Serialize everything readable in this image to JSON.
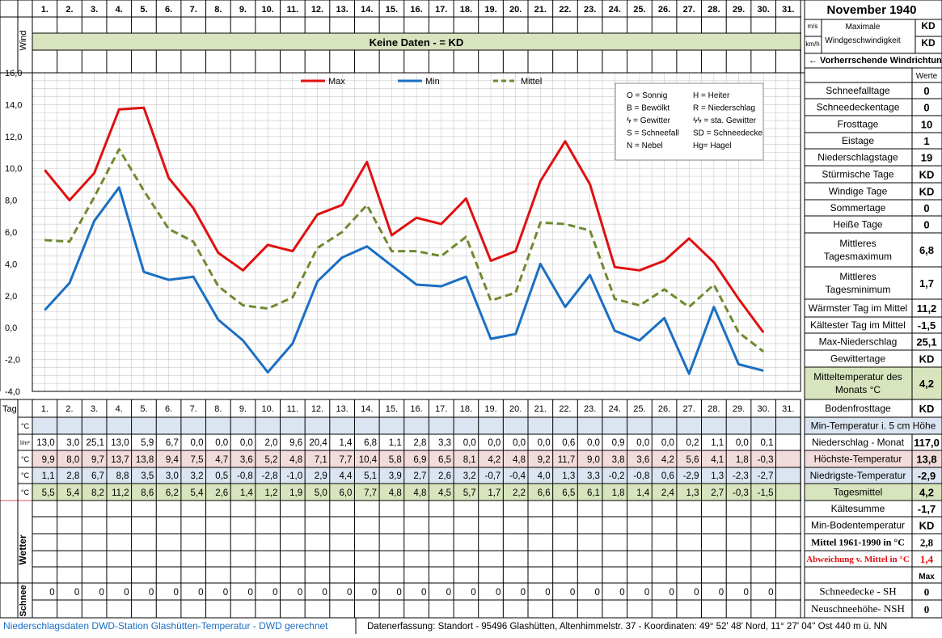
{
  "header": {
    "title": "November 1940",
    "wind_label": "Wind",
    "unit_ms": "m/s",
    "unit_kmh": "km/h",
    "max_wind_label_1": "Maximale",
    "max_wind_label_2": "Windgeschwindigkeit",
    "max_wind_value_1": "KD",
    "max_wind_value_2": "KD",
    "no_data_text": "Keine Daten -  = KD",
    "prevailing_wind": "←  Vorherrschende Windrichtung"
  },
  "days": [
    "1.",
    "2.",
    "3.",
    "4.",
    "5.",
    "6.",
    "7.",
    "8.",
    "9.",
    "10.",
    "11.",
    "12.",
    "13.",
    "14.",
    "15.",
    "16.",
    "17.",
    "18.",
    "19.",
    "20.",
    "21.",
    "22.",
    "23.",
    "24.",
    "25.",
    "26.",
    "27.",
    "28.",
    "29.",
    "30.",
    "31."
  ],
  "row_labels": {
    "tag": "Tag",
    "blue_unit": "°C",
    "precip_unit": "l/m²",
    "max_unit": "°C",
    "min_unit": "°C",
    "mean_unit": "°C",
    "wetter": "Wetter",
    "schnee": "Schnee"
  },
  "legend": {
    "max": "Max",
    "min": "Min",
    "mittel": "Mittel"
  },
  "weather_key": [
    [
      "O = Sonnig",
      "H = Heiter"
    ],
    [
      "B = Bewölkt",
      "R = Niederschlag"
    ],
    [
      "ϟ = Gewitter",
      "ϟϟ = sta. Gewitter"
    ],
    [
      "S = Schneefall",
      "SD = Schneedecke"
    ],
    [
      "N = Nebel",
      "Hg= Hagel"
    ]
  ],
  "chart_data": {
    "type": "line",
    "x": [
      1,
      2,
      3,
      4,
      5,
      6,
      7,
      8,
      9,
      10,
      11,
      12,
      13,
      14,
      15,
      16,
      17,
      18,
      19,
      20,
      21,
      22,
      23,
      24,
      25,
      26,
      27,
      28,
      29,
      30
    ],
    "ylim": [
      -4,
      16
    ],
    "yticks": [
      "16,0",
      "14,0",
      "12,0",
      "10,0",
      "8,0",
      "6,0",
      "4,0",
      "2,0",
      "0,0",
      "-2,0",
      "-4,0"
    ],
    "grid": true,
    "legend_position": "top",
    "series": [
      {
        "name": "Max",
        "color": "#e01010",
        "dash": false,
        "values": [
          9.9,
          8.0,
          9.7,
          13.7,
          13.8,
          9.4,
          7.5,
          4.7,
          3.6,
          5.2,
          4.8,
          7.1,
          7.7,
          10.4,
          5.8,
          6.9,
          6.5,
          8.1,
          4.2,
          4.8,
          9.2,
          11.7,
          9.0,
          3.8,
          3.6,
          4.2,
          5.6,
          4.1,
          1.8,
          -0.3
        ]
      },
      {
        "name": "Min",
        "color": "#1a6fc4",
        "dash": false,
        "values": [
          1.1,
          2.8,
          6.7,
          8.8,
          3.5,
          3.0,
          3.2,
          0.5,
          -0.8,
          -2.8,
          -1.0,
          2.9,
          4.4,
          5.1,
          3.9,
          2.7,
          2.6,
          3.2,
          -0.7,
          -0.4,
          4.0,
          1.3,
          3.3,
          -0.2,
          -0.8,
          0.6,
          -2.9,
          1.3,
          -2.3,
          -2.7
        ]
      },
      {
        "name": "Mittel",
        "color": "#6f8a30",
        "dash": true,
        "values": [
          5.5,
          5.4,
          8.2,
          11.2,
          8.6,
          6.2,
          5.4,
          2.6,
          1.4,
          1.2,
          1.9,
          5.0,
          6.0,
          7.7,
          4.8,
          4.8,
          4.5,
          5.7,
          1.7,
          2.2,
          6.6,
          6.5,
          6.1,
          1.8,
          1.4,
          2.4,
          1.3,
          2.7,
          -0.3,
          -1.5
        ]
      }
    ]
  },
  "table": {
    "precip": [
      "13,0",
      "3,0",
      "25,1",
      "13,0",
      "5,9",
      "6,7",
      "0,0",
      "0,0",
      "0,0",
      "2,0",
      "9,6",
      "20,4",
      "1,4",
      "6,8",
      "1,1",
      "2,8",
      "3,3",
      "0,0",
      "0,0",
      "0,0",
      "0,0",
      "0,6",
      "0,0",
      "0,9",
      "0,0",
      "0,0",
      "0,2",
      "1,1",
      "0,0",
      "0,1",
      ""
    ],
    "max": [
      "9,9",
      "8,0",
      "9,7",
      "13,7",
      "13,8",
      "9,4",
      "7,5",
      "4,7",
      "3,6",
      "5,2",
      "4,8",
      "7,1",
      "7,7",
      "10,4",
      "5,8",
      "6,9",
      "6,5",
      "8,1",
      "4,2",
      "4,8",
      "9,2",
      "11,7",
      "9,0",
      "3,8",
      "3,6",
      "4,2",
      "5,6",
      "4,1",
      "1,8",
      "-0,3",
      ""
    ],
    "min": [
      "1,1",
      "2,8",
      "6,7",
      "8,8",
      "3,5",
      "3,0",
      "3,2",
      "0,5",
      "-0,8",
      "-2,8",
      "-1,0",
      "2,9",
      "4,4",
      "5,1",
      "3,9",
      "2,7",
      "2,6",
      "3,2",
      "-0,7",
      "-0,4",
      "4,0",
      "1,3",
      "3,3",
      "-0,2",
      "-0,8",
      "0,6",
      "-2,9",
      "1,3",
      "-2,3",
      "-2,7",
      ""
    ],
    "mean": [
      "5,5",
      "5,4",
      "8,2",
      "11,2",
      "8,6",
      "6,2",
      "5,4",
      "2,6",
      "1,4",
      "1,2",
      "1,9",
      "5,0",
      "6,0",
      "7,7",
      "4,8",
      "4,8",
      "4,5",
      "5,7",
      "1,7",
      "2,2",
      "6,6",
      "6,5",
      "6,1",
      "1,8",
      "1,4",
      "2,4",
      "1,3",
      "2,7",
      "-0,3",
      "-1,5",
      ""
    ],
    "snow": [
      "0",
      "0",
      "0",
      "0",
      "0",
      "0",
      "0",
      "0",
      "0",
      "0",
      "0",
      "0",
      "0",
      "0",
      "0",
      "0",
      "0",
      "0",
      "0",
      "0",
      "0",
      "0",
      "0",
      "0",
      "0",
      "0",
      "0",
      "0",
      "0",
      "0",
      ""
    ]
  },
  "side": {
    "werte_header": "Werte",
    "stats": [
      {
        "label": "Schneefalltage",
        "value": "0"
      },
      {
        "label": "Schneedeckentage",
        "value": "0"
      },
      {
        "label": "Frosttage",
        "value": "10"
      },
      {
        "label": "Eistage",
        "value": "1"
      },
      {
        "label": "Niederschlagstage",
        "value": "19"
      },
      {
        "label": "Stürmische Tage",
        "value": "KD"
      },
      {
        "label": "Windige Tage",
        "value": "KD"
      },
      {
        "label": "Sommertage",
        "value": "0"
      },
      {
        "label": "Heiße Tage",
        "value": "0"
      },
      {
        "label": "Mittleres Tagesmaximum",
        "value": "6,8"
      },
      {
        "label": "Mittleres Tagesminimum",
        "value": "1,7"
      },
      {
        "label": "Wärmster Tag im Mittel",
        "value": "11,2"
      },
      {
        "label": "Kältester Tag im Mittel",
        "value": "-1,5"
      },
      {
        "label": "Max-Niederschlag",
        "value": "25,1"
      },
      {
        "label": "Gewittertage",
        "value": "KD"
      },
      {
        "label": "Mitteltemperatur des Monats °C",
        "value": "4,2"
      },
      {
        "label": "Bodenfrosttage",
        "value": "KD"
      }
    ],
    "bottom": [
      {
        "label": "Min-Temperatur i. 5 cm Höhe",
        "value": ""
      },
      {
        "label": "Niederschlag - Monat",
        "value": "117,0"
      },
      {
        "label": "Höchste-Temperatur",
        "value": "13,8"
      },
      {
        "label": "Niedrigste-Temperatur",
        "value": "-2,9"
      },
      {
        "label": "Tagesmittel",
        "value": "4,2"
      },
      {
        "label": "Kältesumme",
        "value": "-1,7"
      },
      {
        "label": "Min-Bodentemperatur",
        "value": "KD"
      },
      {
        "label": "Mittel 1961-1990 in °C",
        "value": "2,8"
      },
      {
        "label": "Abweichung v. Mittel in °C",
        "value": "1,4"
      },
      {
        "label": "",
        "value": "Max"
      },
      {
        "label": "Schneedecke -   SH",
        "value": "0"
      },
      {
        "label": "Neuschneehöhe- NSH",
        "value": "0"
      }
    ]
  },
  "footer": {
    "left": "Niederschlagsdaten DWD-Station Glashütten-Temperatur -  DWD gerechnet",
    "right": "Datenerfassung: Standort -  95496  Glashütten, Altenhimmelstr. 37 - Koordinaten:  49° 52' 48' Nord,   11° 27' 04'' Ost   440 m ü. NN"
  }
}
